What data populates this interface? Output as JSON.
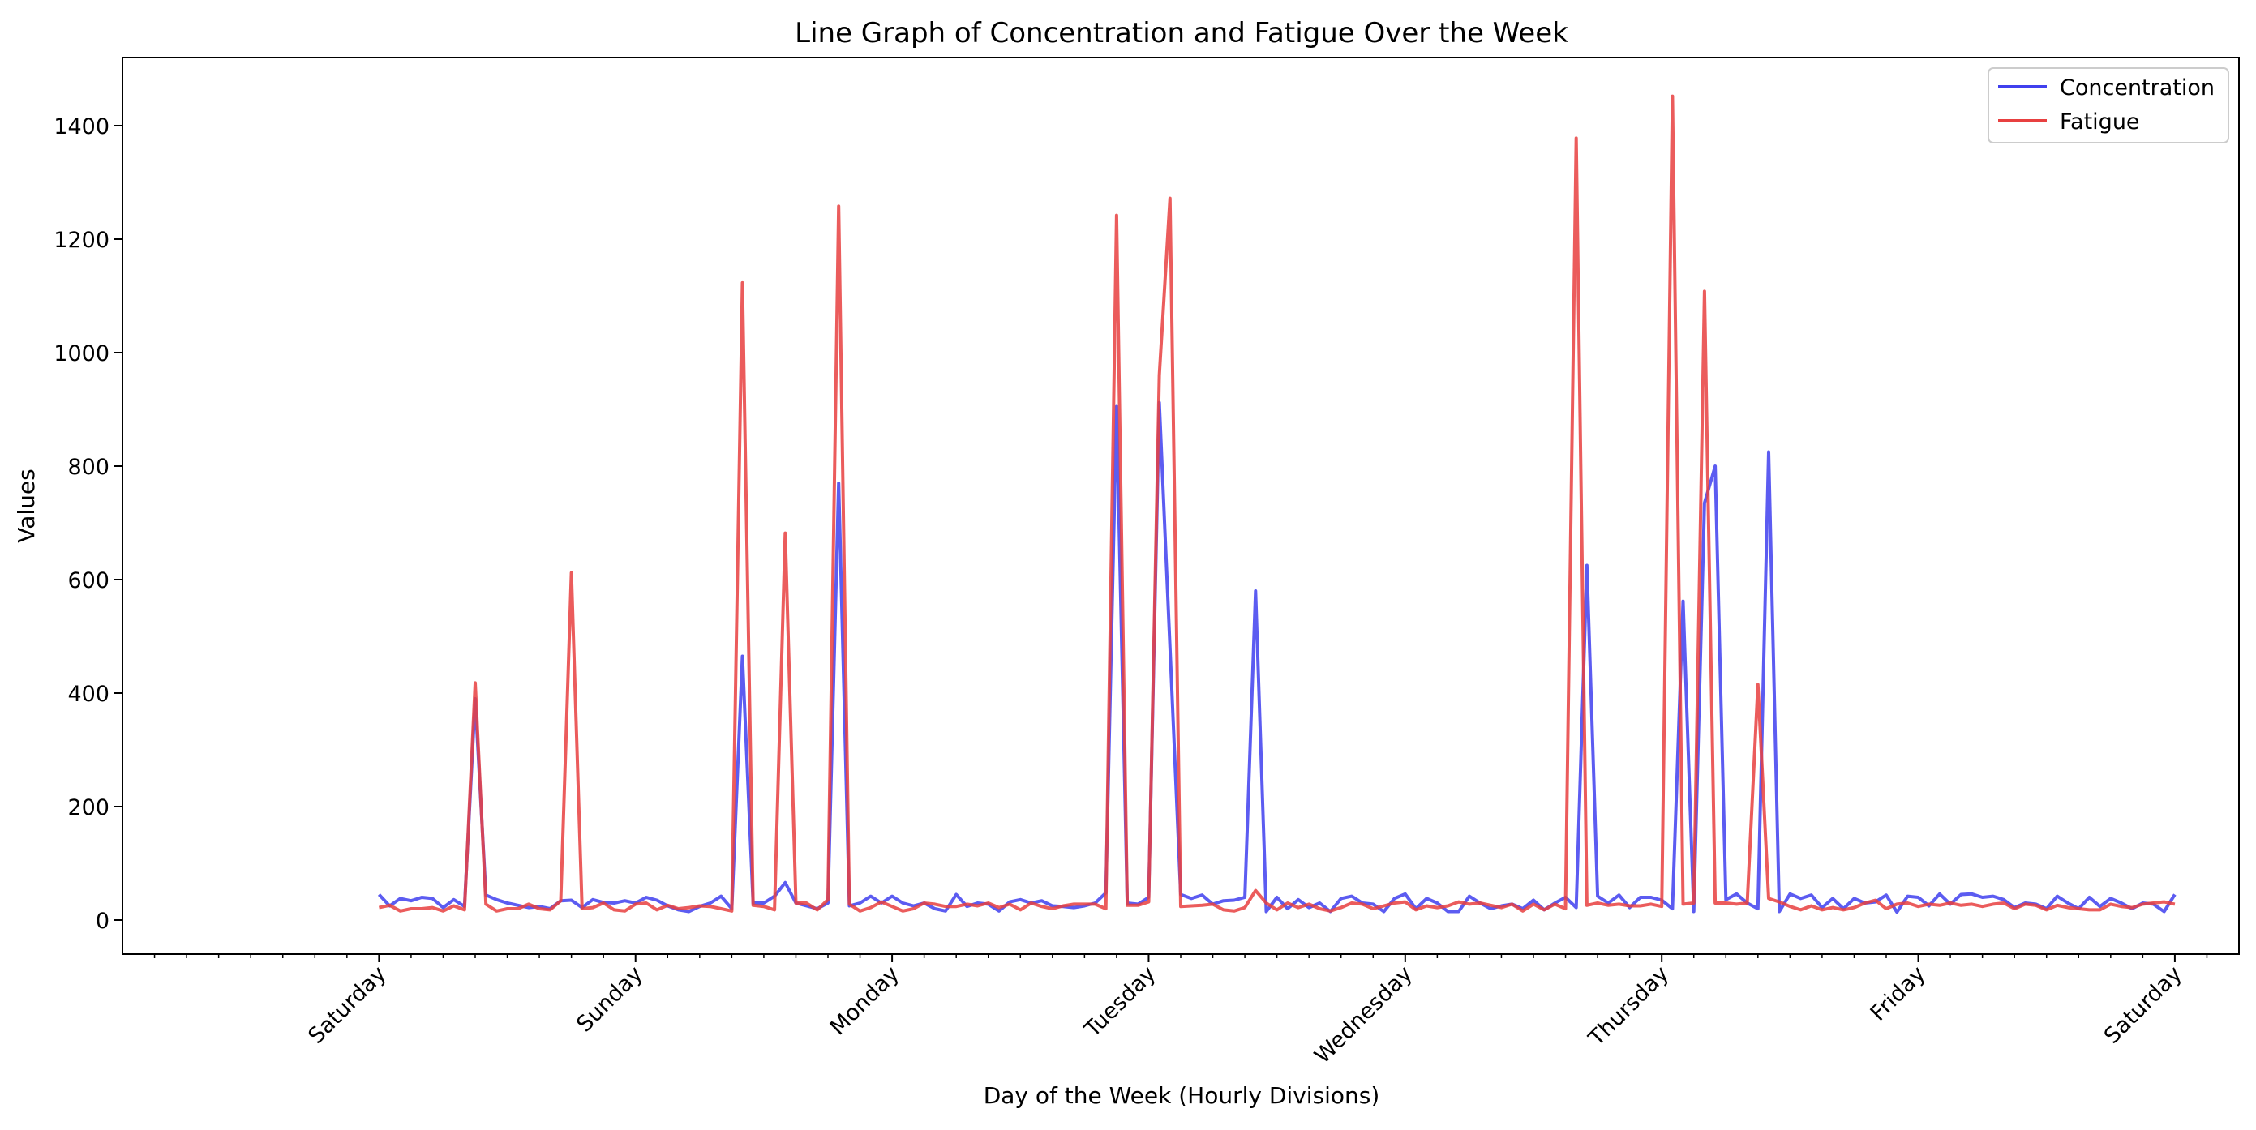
{
  "chart_data": {
    "type": "line",
    "title": "Line Graph of Concentration and Fatigue Over the Week",
    "xlabel": "Day of the Week (Hourly Divisions)",
    "ylabel": "Values",
    "x_unit": "hours since Saturday 00:00",
    "xlim": [
      -24,
      174
    ],
    "ylim": [
      -60,
      1520
    ],
    "yticks": [
      0,
      200,
      400,
      600,
      800,
      1000,
      1200,
      1400
    ],
    "xticks": [
      {
        "x": 0,
        "label": "Saturday"
      },
      {
        "x": 24,
        "label": "Sunday"
      },
      {
        "x": 48,
        "label": "Monday"
      },
      {
        "x": 72,
        "label": "Tuesday"
      },
      {
        "x": 96,
        "label": "Wednesday"
      },
      {
        "x": 120,
        "label": "Thursday"
      },
      {
        "x": 144,
        "label": "Friday"
      },
      {
        "x": 168,
        "label": "Saturday"
      }
    ],
    "grid": false,
    "legend_position": "top-right",
    "series": [
      {
        "name": "Concentration",
        "color": "#4040ee",
        "values": [
          45,
          25,
          38,
          34,
          40,
          38,
          22,
          36,
          24,
          390,
          44,
          36,
          30,
          26,
          22,
          24,
          20,
          34,
          35,
          22,
          36,
          31,
          30,
          34,
          30,
          40,
          35,
          25,
          18,
          15,
          24,
          30,
          42,
          20,
          465,
          30,
          30,
          42,
          66,
          30,
          25,
          20,
          30,
          770,
          25,
          30,
          42,
          30,
          42,
          30,
          25,
          30,
          20,
          16,
          45,
          24,
          30,
          28,
          16,
          32,
          36,
          30,
          34,
          25,
          24,
          22,
          25,
          30,
          48,
          905,
          30,
          28,
          40,
          912,
          480,
          45,
          38,
          44,
          28,
          34,
          35,
          40,
          580,
          15,
          40,
          20,
          36,
          22,
          30,
          15,
          38,
          42,
          30,
          28,
          15,
          38,
          46,
          20,
          38,
          30,
          15,
          15,
          42,
          30,
          20,
          25,
          28,
          20,
          35,
          18,
          30,
          40,
          22,
          625,
          42,
          30,
          44,
          22,
          40,
          40,
          35,
          20,
          562,
          15,
          735,
          800,
          36,
          46,
          30,
          20,
          825,
          15,
          46,
          38,
          44,
          22,
          38,
          20,
          38,
          30,
          32,
          44,
          14,
          42,
          40,
          25,
          46,
          28,
          45,
          46,
          40,
          42,
          36,
          22,
          30,
          28,
          20,
          42,
          30,
          20,
          40,
          24,
          38,
          30,
          20,
          30,
          28,
          15,
          45
        ]
      },
      {
        "name": "Fatigue",
        "color": "#e84040",
        "values": [
          22,
          26,
          16,
          20,
          20,
          22,
          16,
          25,
          18,
          418,
          28,
          16,
          20,
          20,
          28,
          20,
          18,
          34,
          612,
          20,
          22,
          30,
          18,
          16,
          28,
          30,
          18,
          26,
          20,
          22,
          25,
          24,
          20,
          16,
          1123,
          26,
          24,
          18,
          682,
          30,
          30,
          18,
          36,
          1258,
          28,
          16,
          22,
          32,
          24,
          16,
          20,
          30,
          28,
          24,
          24,
          28,
          25,
          30,
          22,
          28,
          18,
          30,
          24,
          20,
          25,
          28,
          28,
          28,
          20,
          1242,
          26,
          26,
          32,
          960,
          1272,
          24,
          25,
          26,
          28,
          18,
          16,
          22,
          52,
          30,
          18,
          30,
          22,
          28,
          20,
          16,
          22,
          30,
          28,
          20,
          25,
          30,
          32,
          18,
          25,
          22,
          25,
          32,
          28,
          30,
          26,
          22,
          28,
          16,
          28,
          18,
          28,
          20,
          1378,
          26,
          30,
          26,
          28,
          25,
          25,
          28,
          24,
          1452,
          28,
          30,
          1108,
          30,
          30,
          28,
          30,
          415,
          38,
          32,
          24,
          18,
          25,
          18,
          22,
          18,
          22,
          30,
          35,
          20,
          28,
          30,
          24,
          28,
          26,
          30,
          26,
          28,
          24,
          28,
          30,
          20,
          28,
          26,
          18,
          26,
          22,
          20,
          18,
          18,
          28,
          24,
          22,
          28,
          30,
          32,
          28
        ]
      }
    ]
  }
}
